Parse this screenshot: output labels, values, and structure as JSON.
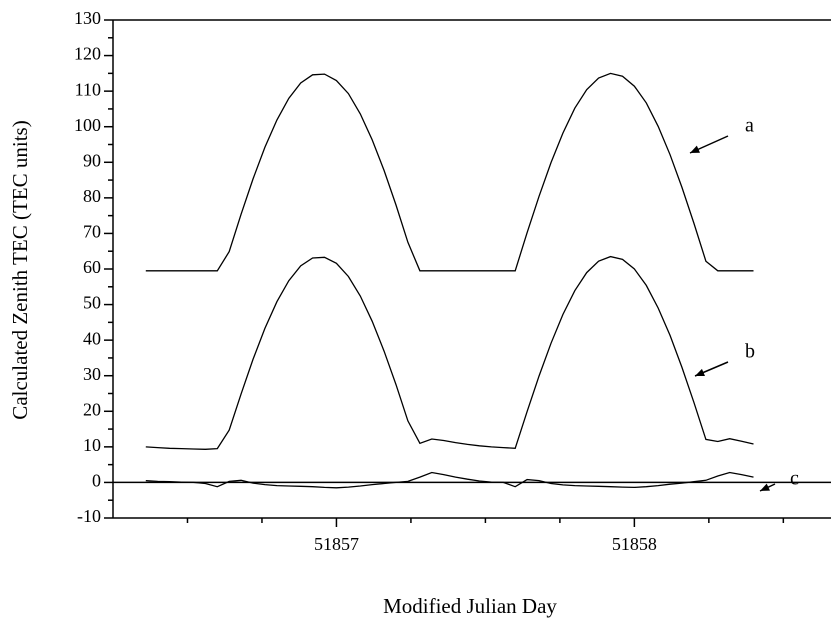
{
  "chart_data": {
    "type": "line",
    "xlabel": "Modified Julian Day",
    "ylabel": "Calculated Zenith TEC (TEC units)",
    "xlim": [
      51856.25,
      51858.66
    ],
    "ylim": [
      -10,
      130
    ],
    "xticks": [
      51857,
      51858
    ],
    "xminorticks": [
      51856.5,
      51856.75,
      51857.25,
      51857.5,
      51857.75,
      51858.25,
      51858.5
    ],
    "yticks": [
      -10,
      0,
      10,
      20,
      30,
      40,
      50,
      60,
      70,
      80,
      90,
      100,
      110,
      120,
      130
    ],
    "yminorticks": [
      -5,
      5,
      15,
      25,
      35,
      45,
      55,
      65,
      75,
      85,
      95,
      105,
      115,
      125
    ],
    "hlines": [
      0
    ],
    "x": [
      51856.36,
      51856.4,
      51856.44,
      51856.48,
      51856.52,
      51856.56,
      51856.6,
      51856.64,
      51856.68,
      51856.72,
      51856.76,
      51856.8,
      51856.84,
      51856.88,
      51856.92,
      51856.96,
      51857.0,
      51857.04,
      51857.08,
      51857.12,
      51857.16,
      51857.2,
      51857.24,
      51857.28,
      51857.32,
      51857.36,
      51857.4,
      51857.44,
      51857.48,
      51857.52,
      51857.56,
      51857.6,
      51857.64,
      51857.68,
      51857.72,
      51857.76,
      51857.8,
      51857.84,
      51857.88,
      51857.92,
      51857.96,
      51858.0,
      51858.04,
      51858.08,
      51858.12,
      51858.16,
      51858.2,
      51858.24,
      51858.28,
      51858.32,
      51858.36,
      51858.4
    ],
    "series": [
      {
        "name": "a",
        "color": "#000000",
        "values": [
          59.5,
          59.5,
          59.5,
          59.5,
          59.5,
          59.5,
          59.5,
          64.9,
          75.4,
          85.3,
          94.2,
          101.9,
          108.0,
          112.3,
          114.6,
          114.8,
          113.0,
          109.3,
          103.6,
          96.3,
          87.7,
          78.0,
          67.5,
          59.5,
          59.5,
          59.5,
          59.5,
          59.5,
          59.5,
          59.5,
          59.5,
          59.5,
          70.2,
          80.4,
          89.9,
          98.2,
          105.2,
          110.4,
          113.7,
          115.0,
          114.2,
          111.4,
          106.7,
          100.1,
          92.1,
          82.9,
          72.8,
          62.2,
          59.5,
          59.5,
          59.5,
          59.5
        ]
      },
      {
        "name": "b",
        "color": "#000000",
        "values": [
          10.0,
          9.8,
          9.6,
          9.5,
          9.4,
          9.3,
          9.5,
          14.7,
          24.9,
          34.6,
          43.3,
          50.8,
          56.7,
          60.9,
          63.1,
          63.3,
          61.6,
          57.9,
          52.4,
          45.3,
          36.9,
          27.5,
          17.3,
          11.0,
          12.2,
          11.8,
          11.2,
          10.7,
          10.3,
          10.0,
          9.8,
          9.6,
          19.9,
          29.9,
          39.1,
          47.2,
          53.9,
          59.0,
          62.2,
          63.5,
          62.7,
          60.0,
          55.4,
          49.0,
          41.3,
          32.3,
          22.4,
          12.1,
          11.5,
          12.3,
          11.6,
          10.8
        ]
      },
      {
        "name": "c",
        "color": "#000000",
        "values": [
          0.5,
          0.3,
          0.2,
          0.1,
          0,
          -0.3,
          -1.2,
          0.3,
          0.6,
          -0.2,
          -0.6,
          -0.9,
          -1.0,
          -1.1,
          -1.2,
          -1.4,
          -1.5,
          -1.3,
          -1.0,
          -0.6,
          -0.3,
          0,
          0.3,
          1.5,
          2.8,
          2.2,
          1.5,
          0.9,
          0.4,
          0.1,
          0,
          -1.2,
          0.8,
          0.5,
          -0.3,
          -0.7,
          -0.9,
          -1.0,
          -1.1,
          -1.2,
          -1.3,
          -1.4,
          -1.2,
          -0.9,
          -0.5,
          -0.2,
          0.2,
          0.6,
          1.8,
          2.8,
          2.2,
          1.5
        ]
      }
    ]
  }
}
